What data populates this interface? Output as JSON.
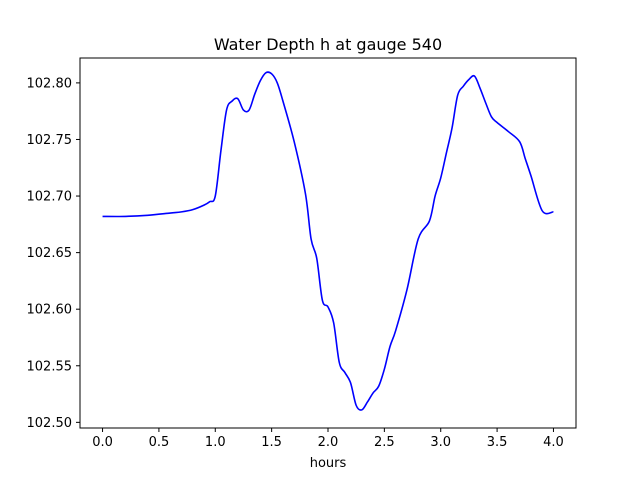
{
  "chart_data": {
    "type": "line",
    "title": "Water Depth h at gauge 540",
    "xlabel": "hours",
    "ylabel": "",
    "xlim": [
      -0.2,
      4.2
    ],
    "ylim": [
      102.495,
      102.822
    ],
    "xticks": [
      0.0,
      0.5,
      1.0,
      1.5,
      2.0,
      2.5,
      3.0,
      3.5,
      4.0
    ],
    "xtick_labels": [
      "0.0",
      "0.5",
      "1.0",
      "1.5",
      "2.0",
      "2.5",
      "3.0",
      "3.5",
      "4.0"
    ],
    "yticks": [
      102.5,
      102.55,
      102.6,
      102.65,
      102.7,
      102.75,
      102.8
    ],
    "ytick_labels": [
      "102.50",
      "102.55",
      "102.60",
      "102.65",
      "102.70",
      "102.75",
      "102.80"
    ],
    "grid": false,
    "series": [
      {
        "color": "#0000ff",
        "x": [
          0.0,
          0.2,
          0.4,
          0.6,
          0.7,
          0.8,
          0.9,
          0.95,
          1.0,
          1.05,
          1.1,
          1.15,
          1.2,
          1.25,
          1.3,
          1.35,
          1.4,
          1.45,
          1.5,
          1.55,
          1.6,
          1.7,
          1.8,
          1.85,
          1.9,
          1.95,
          2.0,
          2.05,
          2.1,
          2.15,
          2.2,
          2.25,
          2.3,
          2.35,
          2.4,
          2.45,
          2.5,
          2.55,
          2.6,
          2.7,
          2.8,
          2.9,
          2.95,
          3.0,
          3.05,
          3.1,
          3.15,
          3.2,
          3.25,
          3.3,
          3.35,
          3.4,
          3.45,
          3.5,
          3.6,
          3.7,
          3.75,
          3.8,
          3.9,
          4.0
        ],
        "y": [
          102.682,
          102.682,
          102.683,
          102.685,
          102.686,
          102.688,
          102.692,
          102.695,
          102.7,
          102.74,
          102.776,
          102.784,
          102.786,
          102.776,
          102.776,
          102.79,
          102.802,
          102.809,
          102.808,
          102.8,
          102.784,
          102.748,
          102.702,
          102.662,
          102.645,
          102.608,
          102.602,
          102.588,
          102.553,
          102.544,
          102.535,
          102.515,
          102.511,
          102.518,
          102.526,
          102.532,
          102.547,
          102.567,
          102.581,
          102.617,
          102.662,
          102.678,
          102.7,
          102.716,
          102.738,
          102.76,
          102.789,
          102.797,
          102.803,
          102.806,
          102.795,
          102.782,
          102.77,
          102.765,
          102.757,
          102.748,
          102.733,
          102.718,
          102.687,
          102.686
        ]
      }
    ]
  }
}
